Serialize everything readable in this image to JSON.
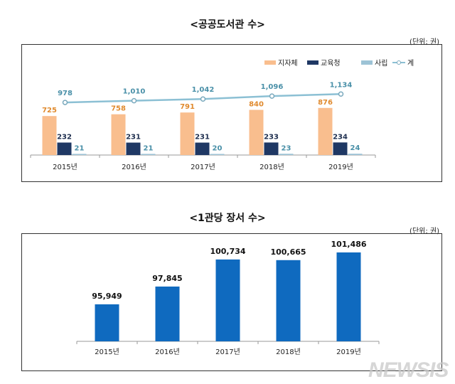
{
  "chart_data": [
    {
      "type": "bar",
      "title": "<공공도서관 수>",
      "unit": "(단위: 권)",
      "categories": [
        "2015년",
        "2016년",
        "2017년",
        "2018년",
        "2019년"
      ],
      "series": [
        {
          "name": "지자체",
          "kind": "bar",
          "color": "#F9BE8E",
          "label_color": "#E08A2E",
          "values": [
            725,
            758,
            791,
            840,
            876
          ]
        },
        {
          "name": "교육청",
          "kind": "bar",
          "color": "#1F3864",
          "label_color": "#1F2F4F",
          "values": [
            232,
            231,
            231,
            233,
            234
          ]
        },
        {
          "name": "사립",
          "kind": "bar",
          "color": "#9DC3D6",
          "label_color": "#4A90A8",
          "values": [
            21,
            21,
            20,
            23,
            24
          ]
        },
        {
          "name": "계",
          "kind": "line",
          "color": "#8CC0D4",
          "label_color": "#4A90A8",
          "values": [
            978,
            1010,
            1042,
            1096,
            1134
          ]
        }
      ],
      "legend": "top-right",
      "grid": false
    },
    {
      "type": "bar",
      "title": "<1관당 장서 수>",
      "unit": "(단위: 권)",
      "categories": [
        "2015년",
        "2016년",
        "2017년",
        "2018년",
        "2019년"
      ],
      "series": [
        {
          "color": "#0F6ABF",
          "values": [
            95949,
            97845,
            100734,
            100665,
            101486
          ]
        }
      ],
      "value_labels": [
        "95,949",
        "97,845",
        "100,734",
        "100,665",
        "101,486"
      ],
      "grid": false
    }
  ],
  "labels1": {
    "totals": [
      "978",
      "1,010",
      "1,042",
      "1,096",
      "1,134"
    ]
  },
  "watermark": "NEWSIS"
}
